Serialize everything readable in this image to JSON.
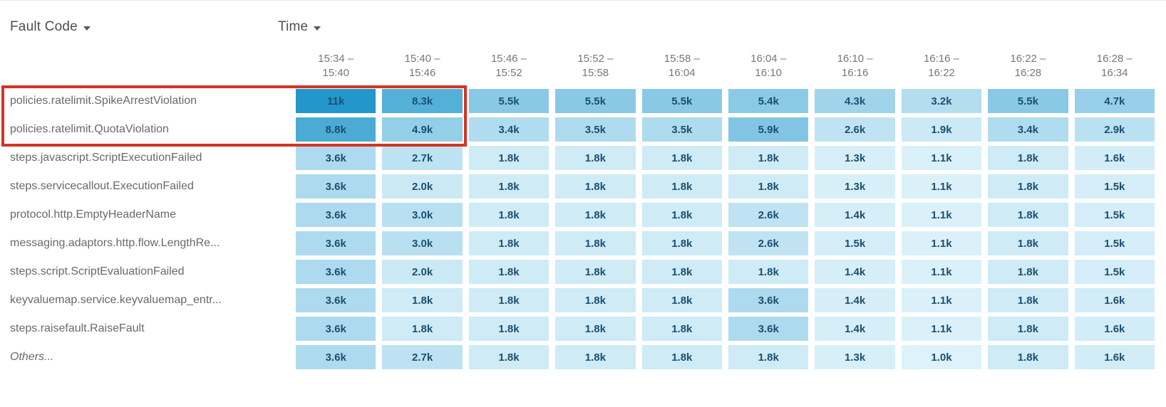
{
  "controls": {
    "dimension_label": "Fault Code",
    "time_label": "Time"
  },
  "chart_data": {
    "type": "heatmap",
    "value_unit": "k",
    "legend_position": "none",
    "grid": false,
    "columns": [
      {
        "start": "15:34",
        "end": "15:40"
      },
      {
        "start": "15:40",
        "end": "15:46"
      },
      {
        "start": "15:46",
        "end": "15:52"
      },
      {
        "start": "15:52",
        "end": "15:58"
      },
      {
        "start": "15:58",
        "end": "16:04"
      },
      {
        "start": "16:04",
        "end": "16:10"
      },
      {
        "start": "16:10",
        "end": "16:16"
      },
      {
        "start": "16:16",
        "end": "16:22"
      },
      {
        "start": "16:22",
        "end": "16:28"
      },
      {
        "start": "16:28",
        "end": "16:34"
      }
    ],
    "rows": [
      {
        "label": "policies.ratelimit.SpikeArrestViolation",
        "italic": false,
        "values": [
          11,
          8.3,
          5.5,
          5.5,
          5.5,
          5.4,
          4.3,
          3.2,
          5.5,
          4.7
        ]
      },
      {
        "label": "policies.ratelimit.QuotaViolation",
        "italic": false,
        "values": [
          8.8,
          4.9,
          3.4,
          3.5,
          3.5,
          5.9,
          2.6,
          1.9,
          3.4,
          2.9
        ]
      },
      {
        "label": "steps.javascript.ScriptExecutionFailed",
        "italic": false,
        "values": [
          3.6,
          2.7,
          1.8,
          1.8,
          1.8,
          1.8,
          1.3,
          1.1,
          1.8,
          1.6
        ]
      },
      {
        "label": "steps.servicecallout.ExecutionFailed",
        "italic": false,
        "values": [
          3.6,
          2.0,
          1.8,
          1.8,
          1.8,
          1.8,
          1.3,
          1.1,
          1.8,
          1.5
        ]
      },
      {
        "label": "protocol.http.EmptyHeaderName",
        "italic": false,
        "values": [
          3.6,
          3.0,
          1.8,
          1.8,
          1.8,
          2.6,
          1.4,
          1.1,
          1.8,
          1.5
        ]
      },
      {
        "label": "messaging.adaptors.http.flow.LengthRe...",
        "italic": false,
        "values": [
          3.6,
          3.0,
          1.8,
          1.8,
          1.8,
          2.6,
          1.5,
          1.1,
          1.8,
          1.5
        ]
      },
      {
        "label": "steps.script.ScriptEvaluationFailed",
        "italic": false,
        "values": [
          3.6,
          2.0,
          1.8,
          1.8,
          1.8,
          1.8,
          1.4,
          1.1,
          1.8,
          1.5
        ]
      },
      {
        "label": "keyvaluemap.service.keyvaluemap_entr...",
        "italic": false,
        "values": [
          3.6,
          1.8,
          1.8,
          1.8,
          1.8,
          3.6,
          1.4,
          1.1,
          1.8,
          1.6
        ]
      },
      {
        "label": "steps.raisefault.RaiseFault",
        "italic": false,
        "values": [
          3.6,
          1.8,
          1.8,
          1.8,
          1.8,
          3.6,
          1.4,
          1.1,
          1.8,
          1.6
        ]
      },
      {
        "label": "Others...",
        "italic": true,
        "values": [
          3.6,
          2.7,
          1.8,
          1.8,
          1.8,
          1.8,
          1.3,
          1.0,
          1.8,
          1.6
        ]
      }
    ],
    "color_scale": {
      "min_value": 1.0,
      "max_value": 11,
      "min_color": "#ddf2fa",
      "max_color": "#2397cb",
      "text_color": "#1b4f70"
    },
    "highlight": {
      "rows": [
        0,
        1
      ],
      "cols": [
        0,
        1
      ],
      "color": "#d43420"
    }
  }
}
